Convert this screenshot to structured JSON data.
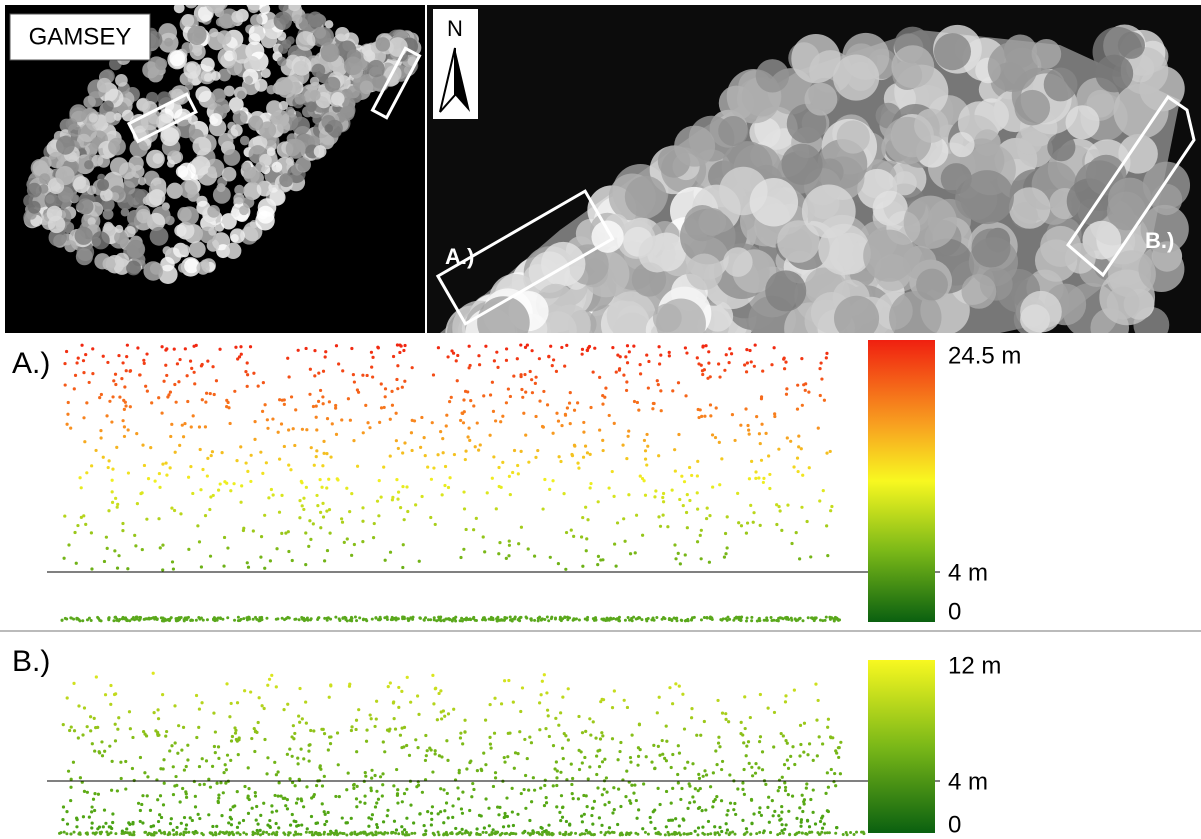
{
  "figure": {
    "overview_label": "GAMSEY",
    "north": "N",
    "zoom_labels": [
      "A.)",
      "B.)"
    ],
    "profiles": [
      {
        "label": "A.)",
        "scale_labels": [
          "24.5 m",
          "4 m",
          "0"
        ]
      },
      {
        "label": "B.)",
        "scale_labels": [
          "12 m",
          "4 m",
          "0"
        ]
      }
    ]
  }
}
